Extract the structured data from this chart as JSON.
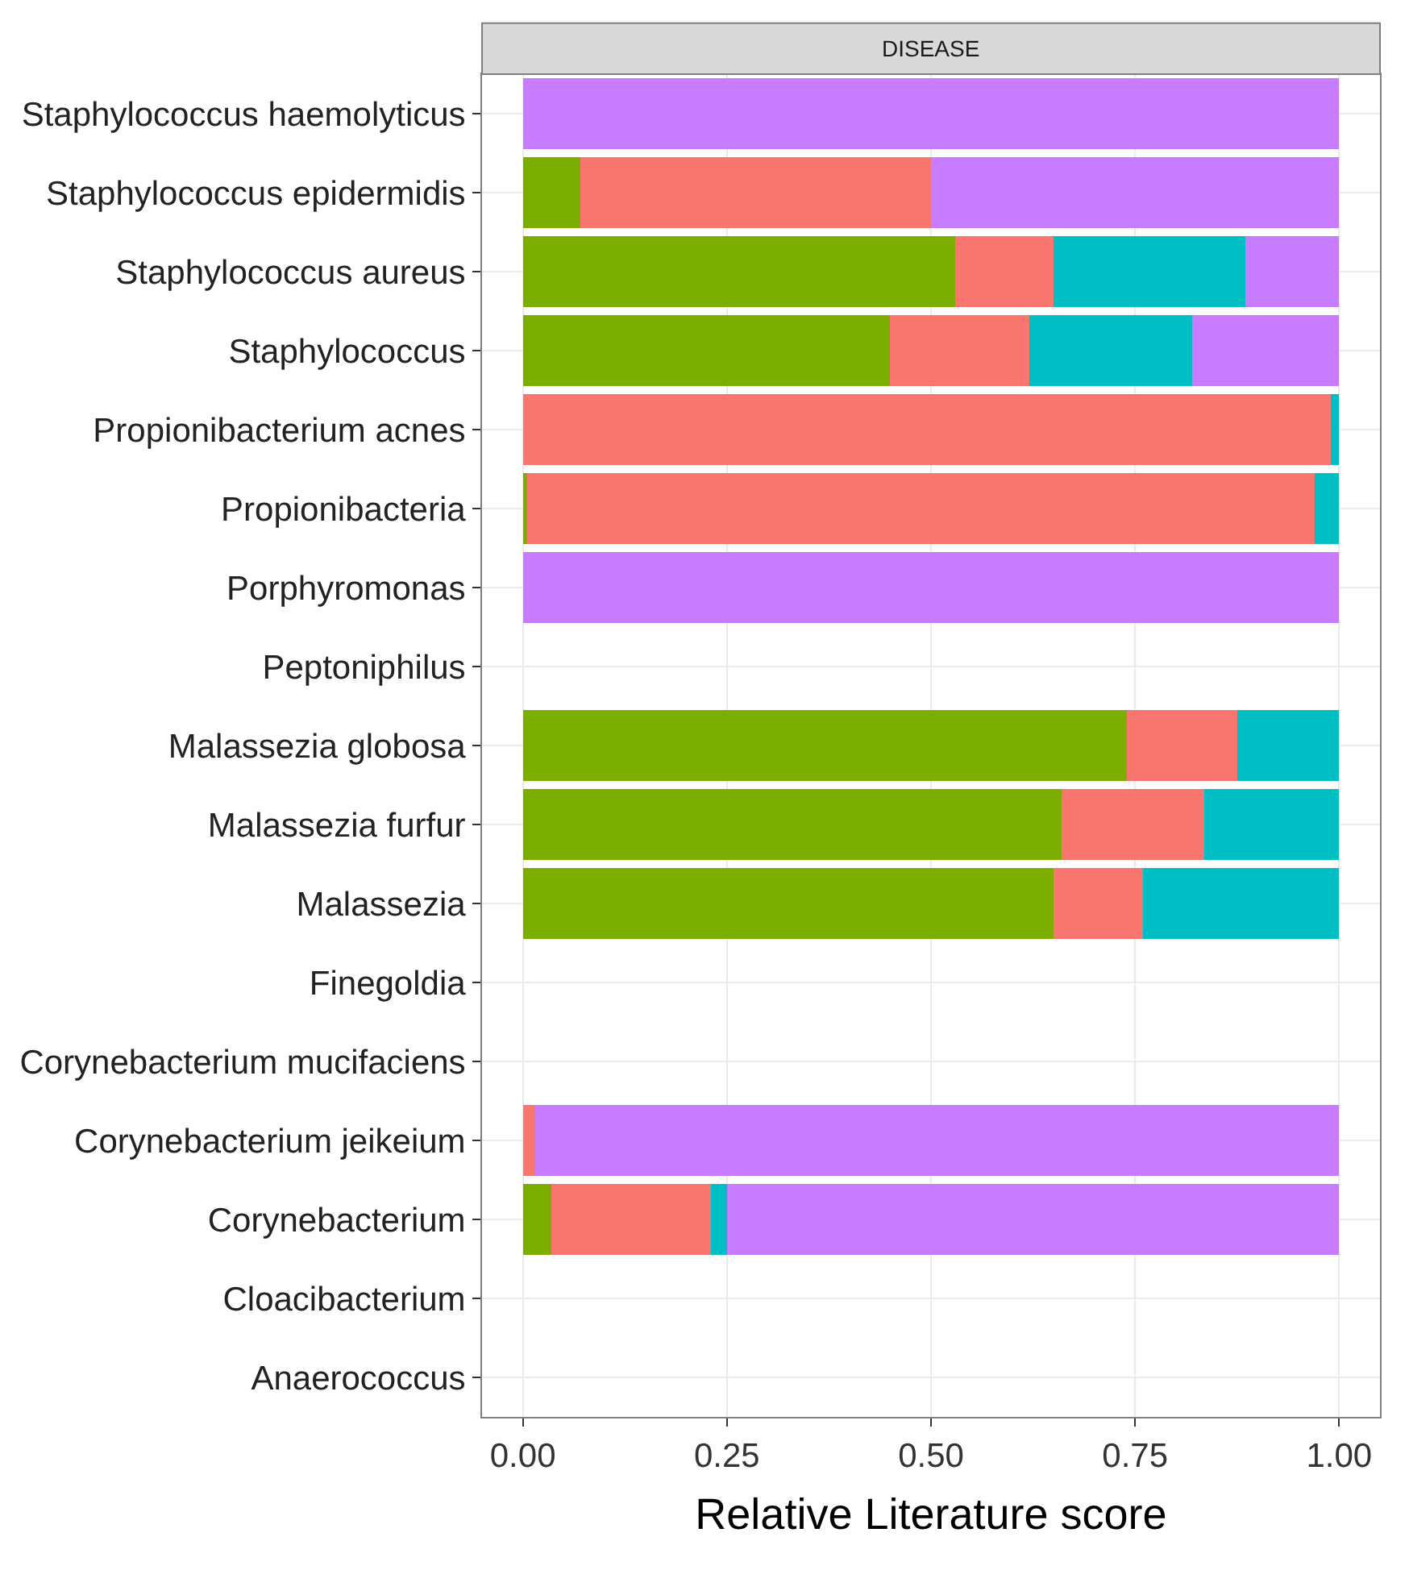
{
  "chart_data": {
    "type": "bar",
    "orientation": "horizontal",
    "stacked": true,
    "title": "DISEASE",
    "xlabel": "Relative Literature score",
    "categories": [
      "Staphylococcus haemolyticus",
      "Staphylococcus epidermidis",
      "Staphylococcus aureus",
      "Staphylococcus",
      "Propionibacterium acnes",
      "Propionibacteria",
      "Porphyromonas",
      "Peptoniphilus",
      "Malassezia globosa",
      "Malassezia furfur",
      "Malassezia",
      "Finegoldia",
      "Corynebacterium mucifaciens",
      "Corynebacterium jeikeium",
      "Corynebacterium",
      "Cloacibacterium",
      "Anaerococcus"
    ],
    "series": [
      {
        "color": "#7cae00",
        "values": [
          null,
          0.07,
          0.53,
          0.45,
          null,
          0.005,
          null,
          null,
          0.74,
          0.66,
          0.65,
          null,
          null,
          null,
          0.035,
          null,
          null
        ]
      },
      {
        "color": "#f8766d",
        "values": [
          null,
          0.43,
          0.12,
          0.17,
          0.99,
          0.965,
          null,
          null,
          0.135,
          0.175,
          0.11,
          null,
          null,
          0.015,
          0.195,
          null,
          null
        ]
      },
      {
        "color": "#00bfc4",
        "values": [
          null,
          null,
          0.235,
          0.2,
          0.01,
          0.03,
          null,
          null,
          0.125,
          0.165,
          0.24,
          null,
          null,
          null,
          0.02,
          null,
          null
        ]
      },
      {
        "color": "#c77cff",
        "values": [
          1.0,
          0.5,
          0.115,
          0.18,
          null,
          null,
          1.0,
          null,
          null,
          null,
          null,
          null,
          null,
          0.985,
          0.75,
          null,
          null
        ]
      }
    ],
    "xlim": [
      -0.05,
      1.05
    ],
    "xticks": [
      {
        "value": 0,
        "label": "0.00"
      },
      {
        "value": 0.25,
        "label": "0.25"
      },
      {
        "value": 0.5,
        "label": "0.50"
      },
      {
        "value": 0.75,
        "label": "0.75"
      },
      {
        "value": 1,
        "label": "1.00"
      }
    ],
    "grid": true
  }
}
